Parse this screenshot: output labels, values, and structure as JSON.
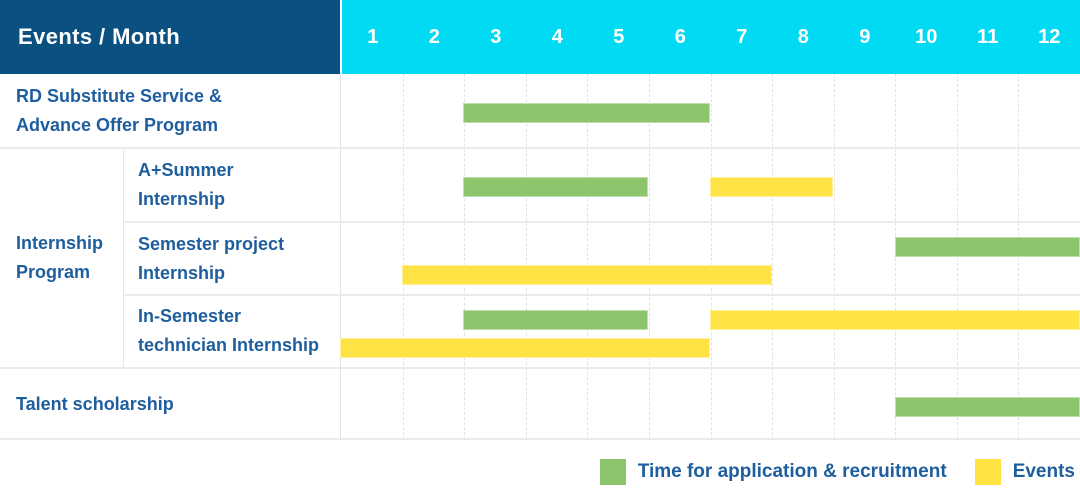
{
  "header": {
    "label": "Events / Month",
    "months": [
      "1",
      "2",
      "3",
      "4",
      "5",
      "6",
      "7",
      "8",
      "9",
      "10",
      "11",
      "12"
    ]
  },
  "chart_data": {
    "type": "gantt",
    "x_unit": "month",
    "x_range": [
      1,
      12
    ],
    "rows": [
      {
        "label": [
          "RD Substitute Service &",
          "Advance Offer Program"
        ],
        "lines": [
          [
            {
              "kind": "application",
              "start": 3,
              "end": 6
            }
          ]
        ]
      },
      {
        "group": [
          "Internship",
          "Program"
        ],
        "children": [
          {
            "label": [
              "A+Summer",
              "Internship"
            ],
            "lines": [
              [
                {
                  "kind": "application",
                  "start": 3,
                  "end": 5
                },
                {
                  "kind": "event",
                  "start": 7,
                  "end": 8
                }
              ]
            ]
          },
          {
            "label": [
              "Semester project",
              "Internship"
            ],
            "lines": [
              [
                {
                  "kind": "application",
                  "start": 10,
                  "end": 12
                }
              ],
              [
                {
                  "kind": "event",
                  "start": 2,
                  "end": 7
                }
              ]
            ]
          },
          {
            "label": [
              "In-Semester",
              "technician Internship"
            ],
            "height": 74,
            "lines": [
              [
                {
                  "kind": "application",
                  "start": 3,
                  "end": 5
                },
                {
                  "kind": "event",
                  "start": 7,
                  "end": 12
                }
              ],
              [
                {
                  "kind": "event",
                  "start": 1,
                  "end": 6
                }
              ]
            ]
          }
        ]
      },
      {
        "label": [
          "Talent scholarship"
        ],
        "lines": [
          [
            {
              "kind": "application",
              "start": 10,
              "end": 12
            }
          ]
        ]
      }
    ]
  },
  "legend": {
    "items": [
      {
        "kind": "application",
        "label": "Time for application & recruitment"
      },
      {
        "kind": "event",
        "label": "Events"
      }
    ]
  },
  "colors": {
    "application": "#8CC56B",
    "event": "#FFE345",
    "header_bg": "#0A5080",
    "months_bg": "#00DBF3",
    "label_text": "#1E5E9E"
  }
}
